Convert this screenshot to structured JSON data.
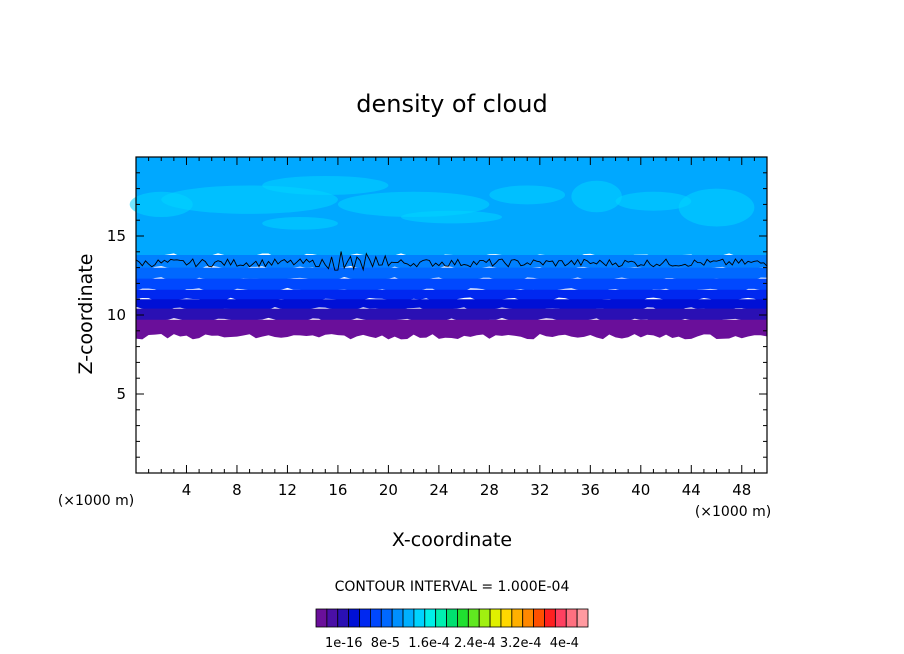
{
  "chart_data": {
    "type": "heatmap",
    "title": "density of cloud",
    "xlabel": "X-coordinate",
    "ylabel": "Z-coordinate",
    "x_unit": "(×1000 m)",
    "y_unit": "(×1000 m)",
    "xlim": [
      0,
      50
    ],
    "ylim": [
      0,
      20
    ],
    "x_ticks": [
      4,
      8,
      12,
      16,
      20,
      24,
      28,
      32,
      36,
      40,
      44,
      48
    ],
    "y_ticks": [
      5,
      10,
      15
    ],
    "contour_interval_text": "CONTOUR INTERVAL = 1.000E-04",
    "colorbar": {
      "labels": [
        "1e-16",
        "8e-5",
        "1.6e-4",
        "2.4e-4",
        "3.2e-4",
        "4e-4"
      ],
      "label_text": "1e-16  8e-5  1.6e-4 2.4e-4 3.2e-4  4e-4",
      "colors": [
        "#6a0f9a",
        "#4a0fa6",
        "#2a10b4",
        "#0010d6",
        "#0028f0",
        "#0048ff",
        "#0068ff",
        "#0090ff",
        "#00b0ff",
        "#00d4ff",
        "#00f0e8",
        "#00f0b0",
        "#00e070",
        "#20e030",
        "#60e820",
        "#a0f010",
        "#e0f000",
        "#ffd800",
        "#ffb000",
        "#ff8800",
        "#ff5000",
        "#ff2020",
        "#ff4060",
        "#ff7080",
        "#ff9aa0"
      ]
    },
    "cloud_layer": {
      "base_z": 8.8,
      "top_z": 20,
      "contour_line_z": 13.3,
      "bands": [
        {
          "z_from": 8.8,
          "z_to": 9.7,
          "color": "#6a0f9a"
        },
        {
          "z_from": 9.7,
          "z_to": 10.4,
          "color": "#2a10b4"
        },
        {
          "z_from": 10.4,
          "z_to": 11.0,
          "color": "#0010d6"
        },
        {
          "z_from": 11.0,
          "z_to": 11.6,
          "color": "#0028f0"
        },
        {
          "z_from": 11.6,
          "z_to": 12.3,
          "color": "#0048ff"
        },
        {
          "z_from": 12.3,
          "z_to": 13.0,
          "color": "#0068ff"
        },
        {
          "z_from": 13.0,
          "z_to": 13.8,
          "color": "#0080ff"
        },
        {
          "z_from": 13.8,
          "z_to": 20.0,
          "color": "#00a8ff"
        }
      ],
      "highlight_color": "#00d4ff"
    }
  }
}
